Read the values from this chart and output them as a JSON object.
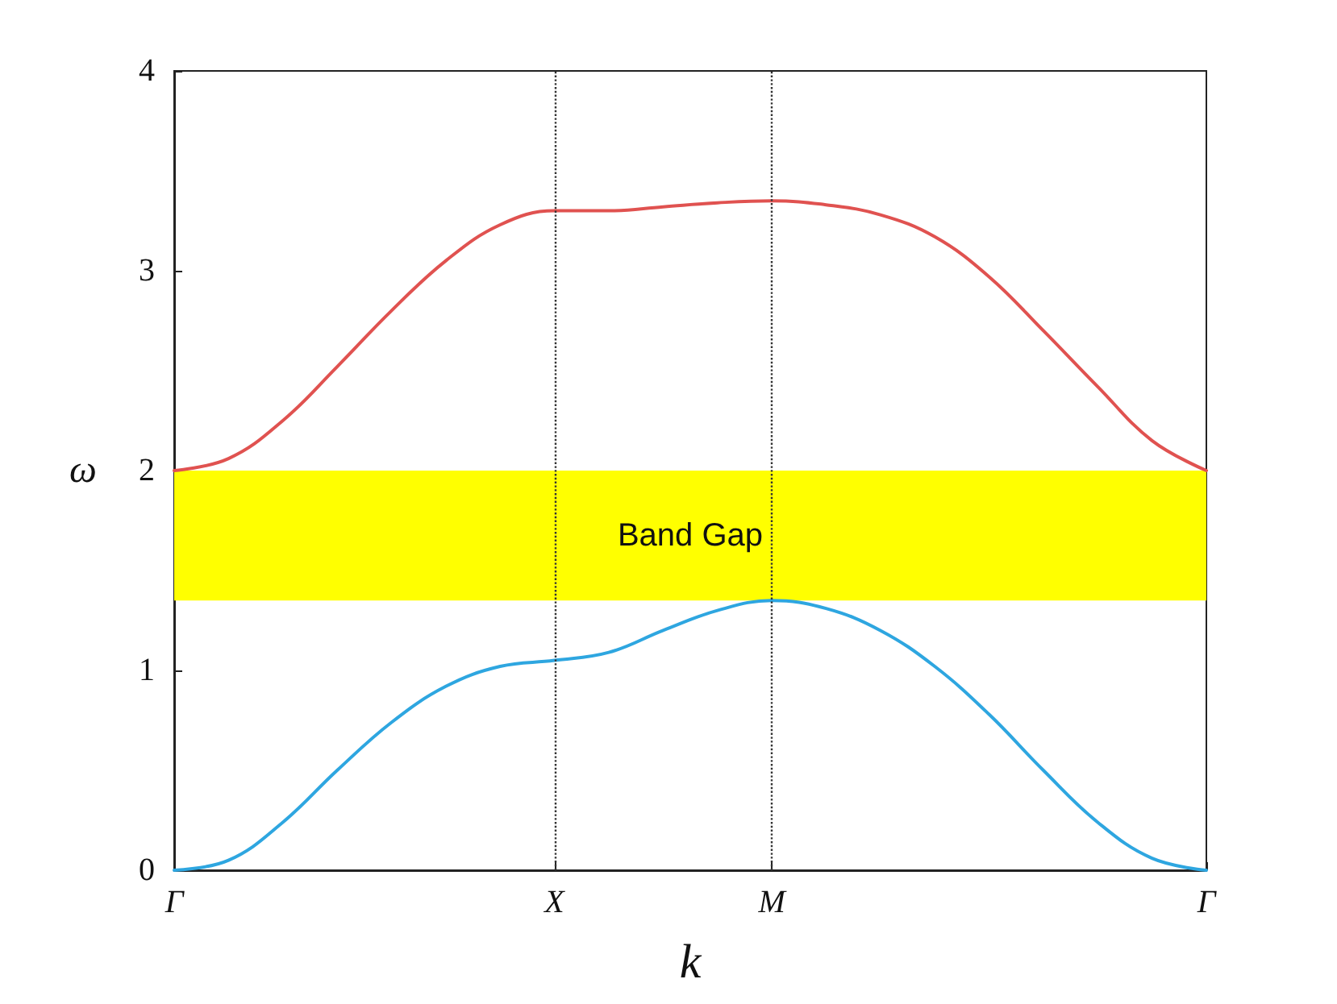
{
  "chart_data": {
    "type": "line",
    "xlabel": "k",
    "ylabel": "ω",
    "categories": [
      "Γ",
      null,
      null,
      null,
      null,
      null,
      null,
      "X",
      null,
      null,
      null,
      "M",
      null,
      null,
      null,
      null,
      null,
      null,
      null,
      "Γ"
    ],
    "ylim": [
      0,
      4
    ],
    "yticks": [
      0,
      1,
      2,
      3,
      4
    ],
    "series": [
      {
        "color": "#e05250",
        "values": [
          2.0,
          2.06,
          2.25,
          2.52,
          2.8,
          3.05,
          3.23,
          3.3,
          3.3,
          3.32,
          3.34,
          3.35,
          3.33,
          3.28,
          3.17,
          2.97,
          2.7,
          2.42,
          2.15,
          2.0
        ]
      },
      {
        "color": "#2ea6e0",
        "values": [
          0,
          0.05,
          0.24,
          0.5,
          0.74,
          0.92,
          1.02,
          1.05,
          1.09,
          1.2,
          1.3,
          1.35,
          1.31,
          1.2,
          1.02,
          0.78,
          0.5,
          0.24,
          0.06,
          0
        ]
      }
    ],
    "bands": [
      {
        "axis": "y",
        "from": 1.35,
        "to": 2.0,
        "label": "Band Gap",
        "color": "#ffff00"
      }
    ],
    "ref_lines": [
      {
        "axis": "x",
        "value": "X",
        "line_style": "dotted",
        "color": "#333333"
      },
      {
        "axis": "x",
        "value": "M",
        "line_style": "dotted",
        "color": "#333333"
      }
    ],
    "grid": false,
    "marker": "none",
    "line_style": "solid"
  }
}
